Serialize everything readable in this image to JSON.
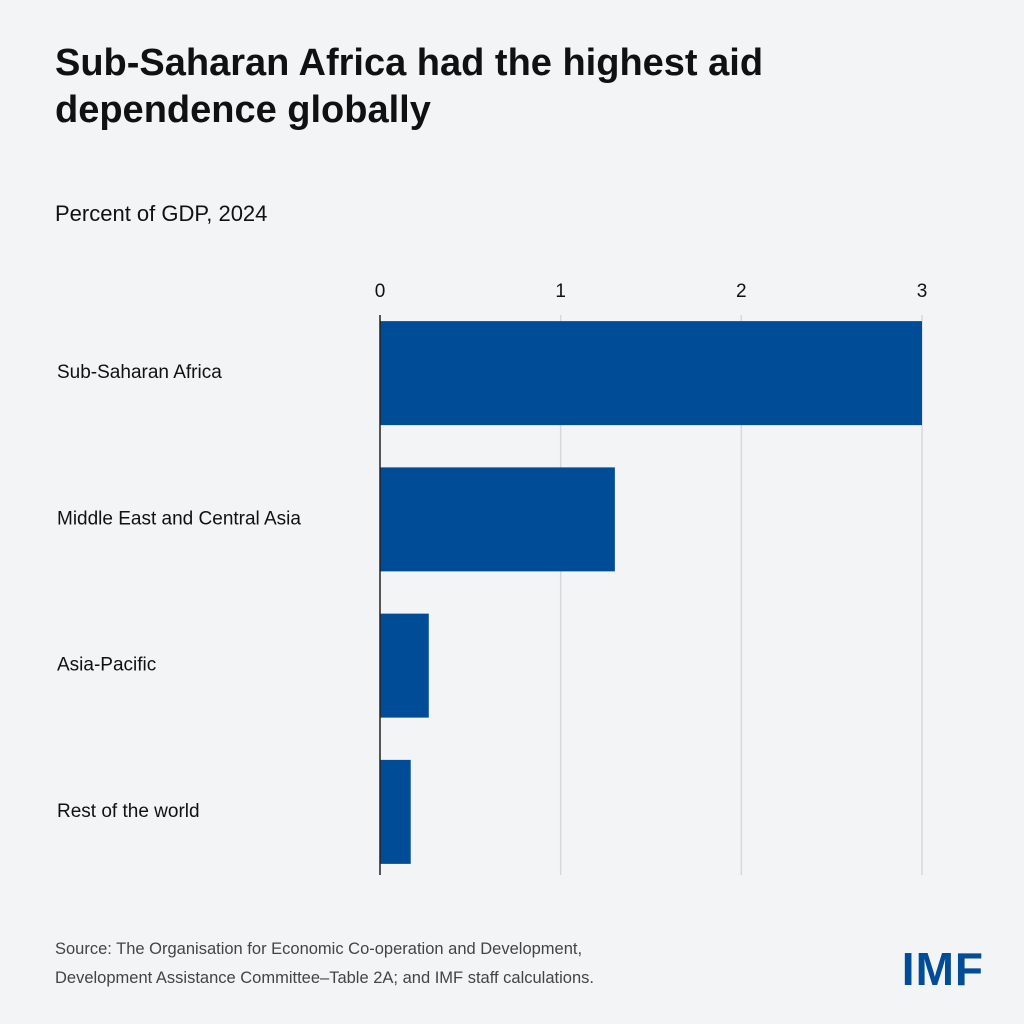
{
  "chart_data": {
    "type": "bar",
    "orientation": "horizontal",
    "title": "Sub-Saharan Africa had the highest aid dependence globally",
    "subtitle": "Percent of GDP, 2024",
    "categories": [
      "Sub-Saharan Africa",
      "Middle East and Central Asia",
      "Asia-Pacific",
      "Rest of the world"
    ],
    "values": [
      3.0,
      1.3,
      0.27,
      0.17
    ],
    "color": "#004c97",
    "xlim": [
      0,
      3
    ],
    "xticks": [
      0,
      1,
      2,
      3
    ],
    "grid": true,
    "source": [
      "Source: The Organisation for Economic Co-operation and Development,",
      "Development Assistance Committee–Table 2A; and IMF staff calculations."
    ],
    "logo": "IMF"
  }
}
